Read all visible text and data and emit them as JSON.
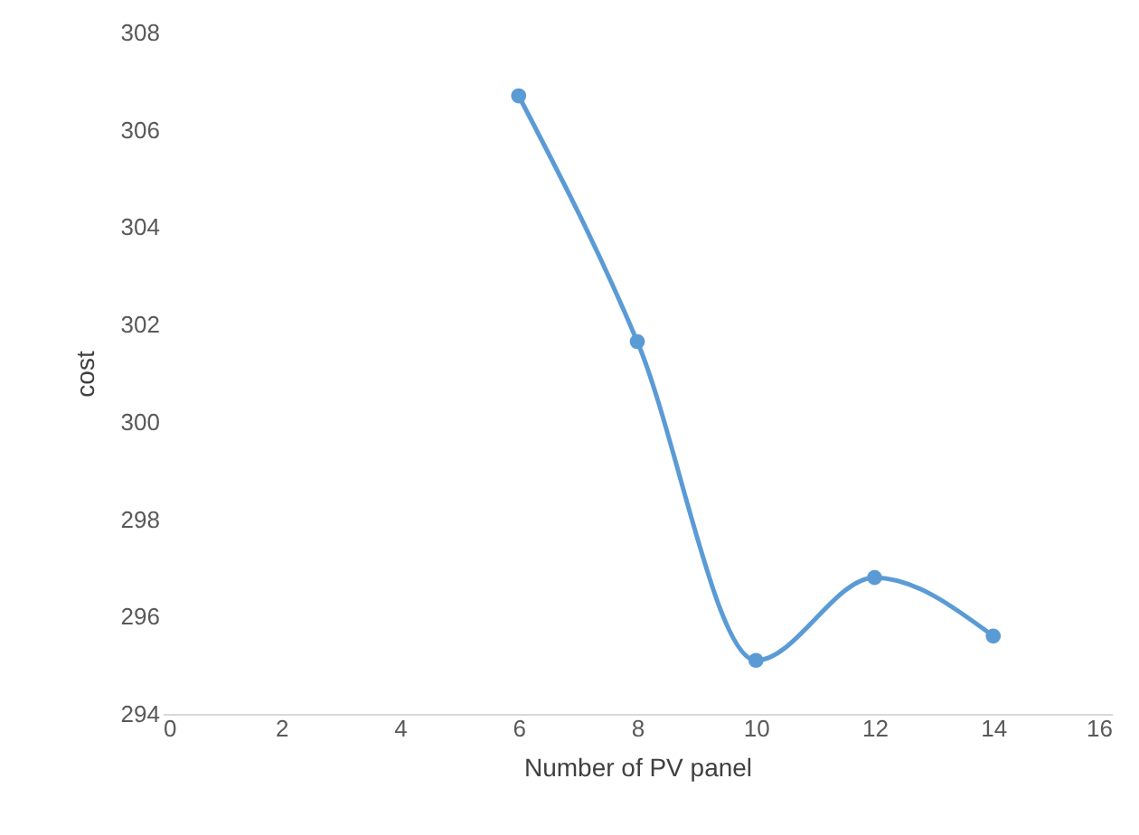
{
  "chart_data": {
    "type": "line",
    "xlabel": "Number  of PV panel",
    "ylabel": "cost",
    "x": [
      6,
      8,
      10,
      12,
      14
    ],
    "series": [
      {
        "color": "#5b9bd5",
        "values": [
          306.7,
          301.65,
          295.1,
          296.8,
          295.6
        ]
      }
    ],
    "xlim": [
      0,
      16
    ],
    "xticks": [
      0,
      2,
      4,
      6,
      8,
      10,
      12,
      14,
      16
    ],
    "ylim": [
      294,
      308
    ],
    "yticks": [
      294,
      296,
      298,
      300,
      302,
      304,
      306,
      308
    ],
    "grid": false,
    "marker": "circle",
    "line_style": "solid"
  }
}
